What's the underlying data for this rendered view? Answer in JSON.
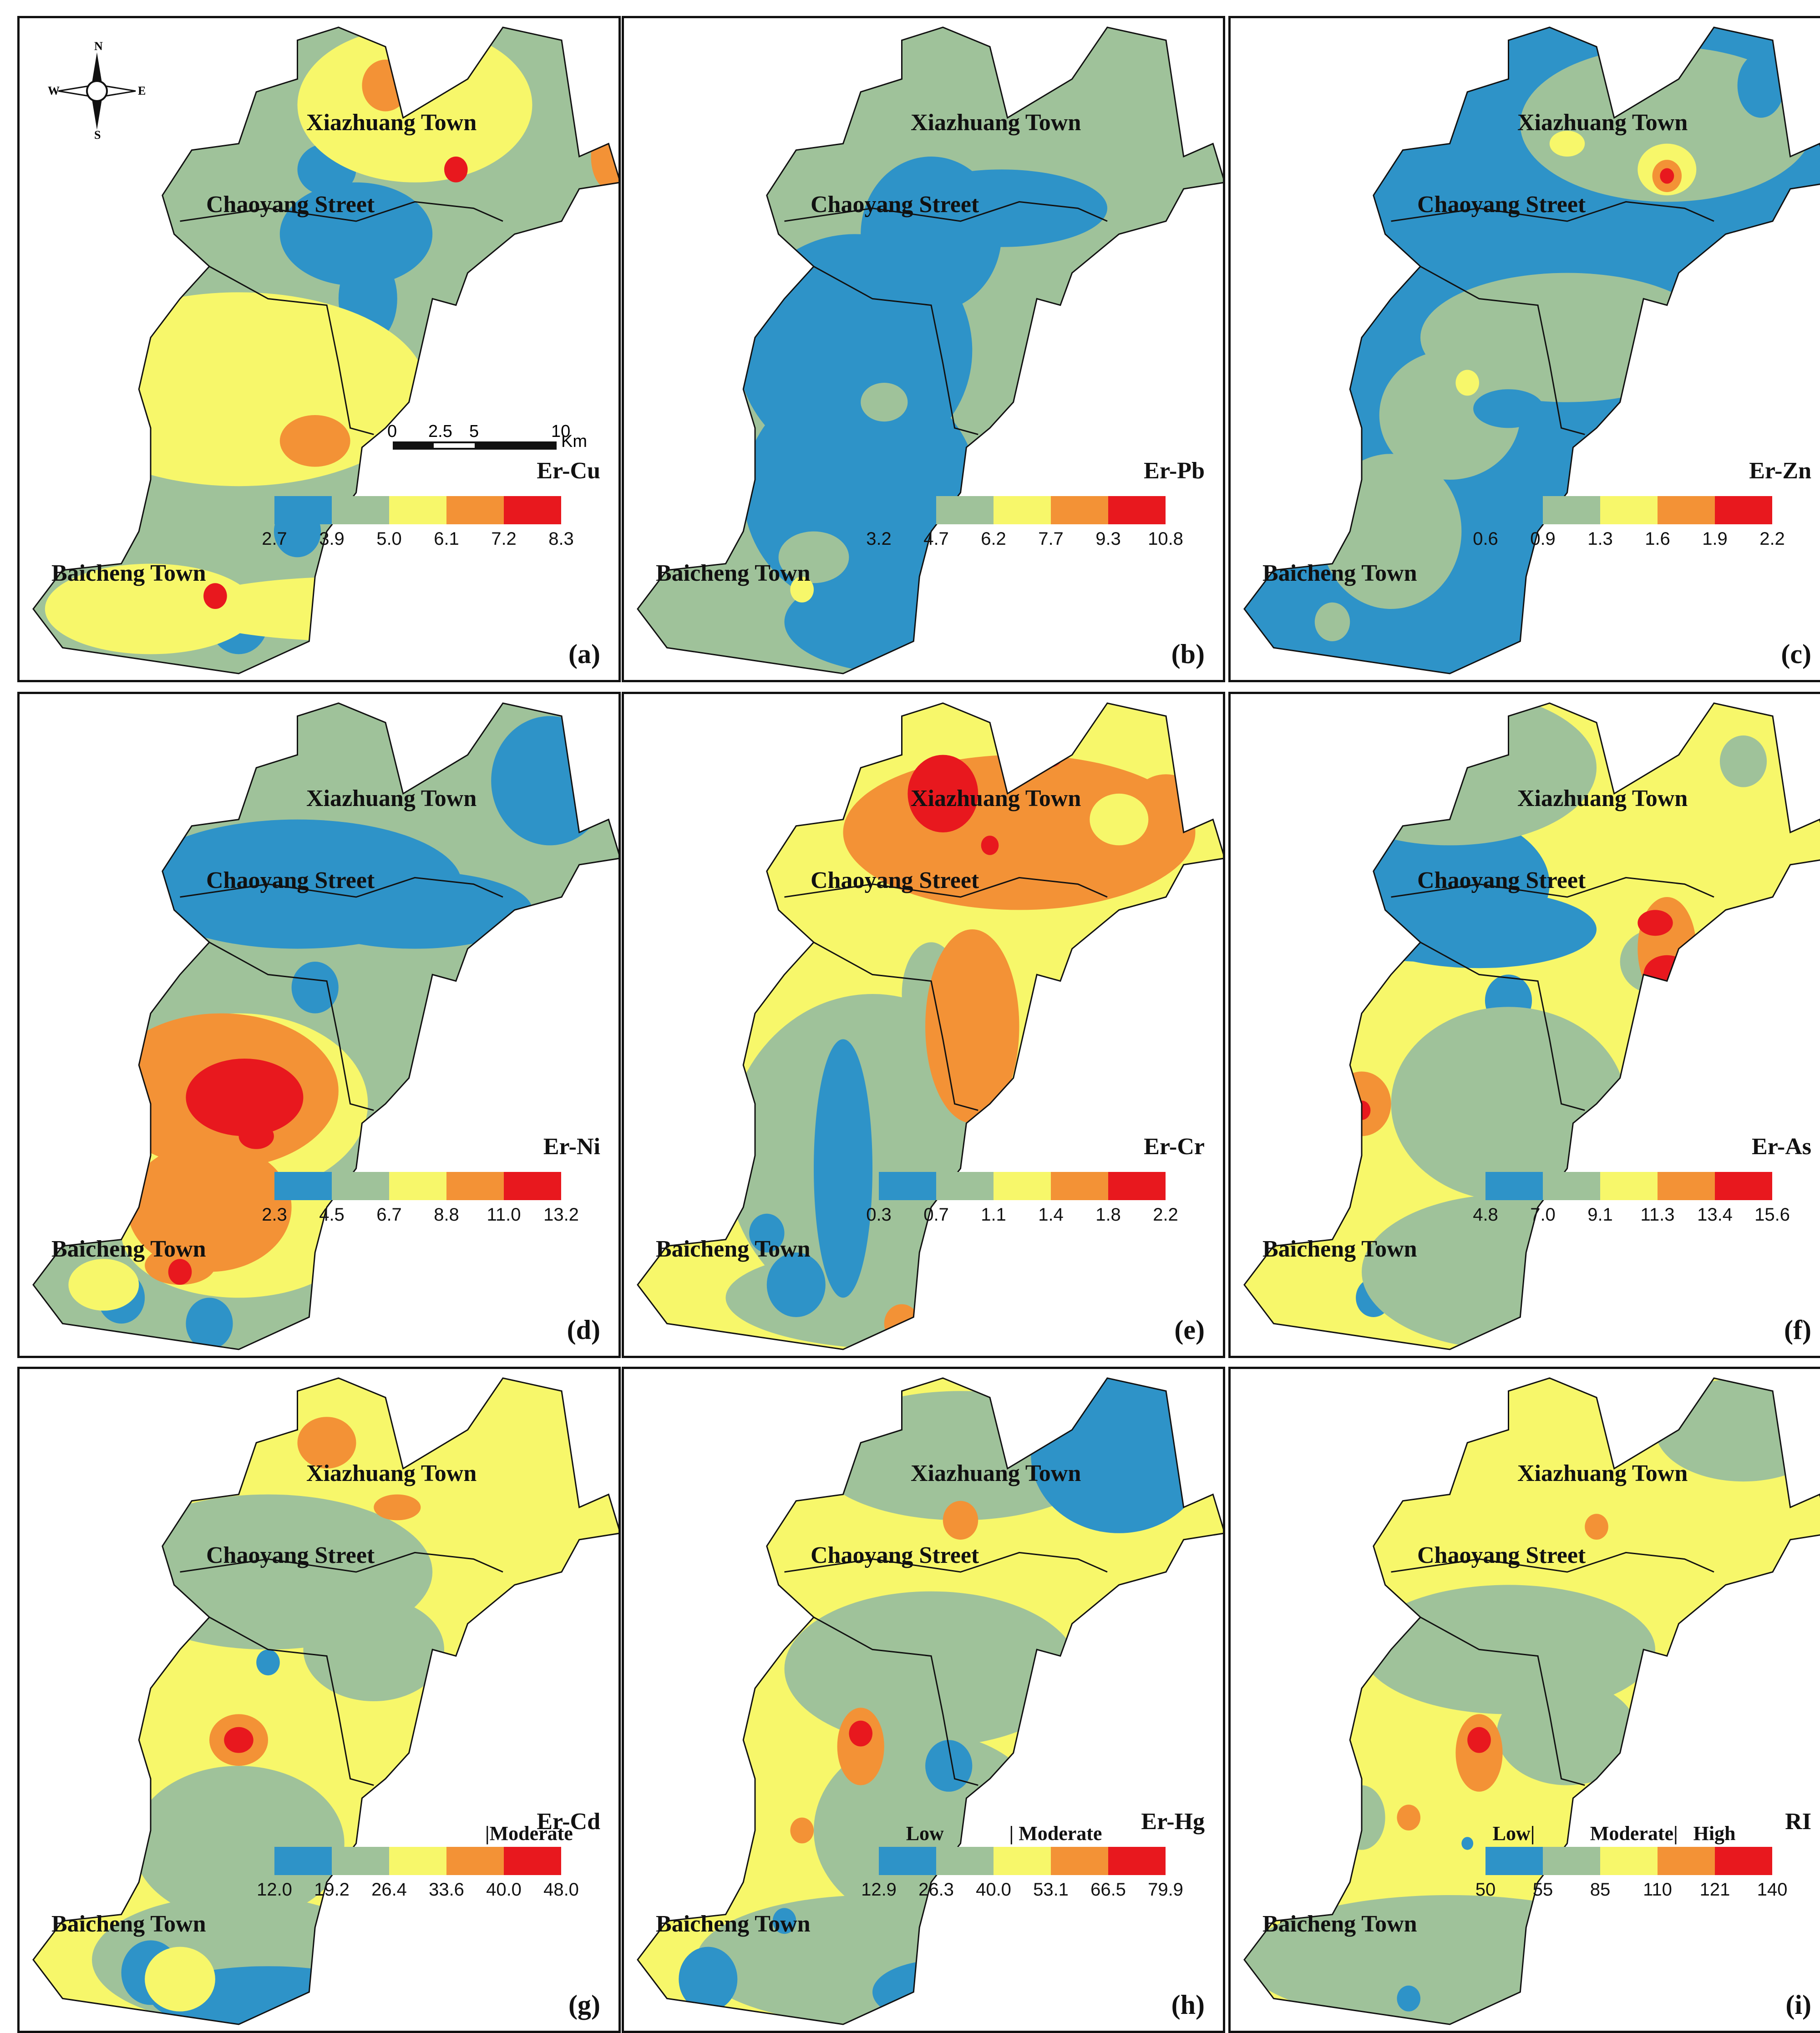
{
  "colors": {
    "c1": "#2e93c8",
    "c2": "#9fc29a",
    "c3": "#f7f76a",
    "c4": "#f39236",
    "c5": "#e8181e",
    "boundary": "#111111"
  },
  "place_names": {
    "xiazhuang": "Xiazhuang Town",
    "chaoyang": "Chaoyang Street",
    "baicheng": "Baicheng Town"
  },
  "compass": {
    "n": "N",
    "s": "S",
    "e": "E",
    "w": "W"
  },
  "scale": {
    "labels": [
      "0",
      "2.5",
      "5",
      "10"
    ],
    "unit": "Km"
  },
  "panels": [
    {
      "label": "(a)",
      "title": "Er-Cu",
      "ticks": [
        "2.7",
        "3.9",
        "5.0",
        "6.1",
        "7.2",
        "8.3"
      ],
      "base": "c2",
      "blobs": [
        [
          "c1",
          0.55,
          0.32,
          0.13,
          0.08
        ],
        [
          "c1",
          0.57,
          0.42,
          0.05,
          0.07
        ],
        [
          "c1",
          0.5,
          0.22,
          0.05,
          0.04
        ],
        [
          "c1",
          0.78,
          0.55,
          0.04,
          0.02
        ],
        [
          "c1",
          0.35,
          0.92,
          0.05,
          0.05
        ],
        [
          "c1",
          0.45,
          0.78,
          0.04,
          0.04
        ],
        [
          "c3",
          0.65,
          0.12,
          0.2,
          0.12
        ],
        [
          "c3",
          0.35,
          0.56,
          0.32,
          0.15
        ],
        [
          "c3",
          0.2,
          0.9,
          0.18,
          0.07
        ],
        [
          "c3",
          0.55,
          0.9,
          0.3,
          0.05
        ],
        [
          "c4",
          0.6,
          0.09,
          0.04,
          0.04
        ],
        [
          "c4",
          0.48,
          0.64,
          0.06,
          0.04
        ],
        [
          "c4",
          0.98,
          0.2,
          0.03,
          0.05
        ],
        [
          "c5",
          0.72,
          0.22,
          0.02,
          0.02
        ],
        [
          "c5",
          0.31,
          0.88,
          0.02,
          0.02
        ]
      ]
    },
    {
      "label": "(b)",
      "title": "Er-Pb",
      "ticks": [
        "3.2",
        "4.7",
        "6.2",
        "7.7",
        "9.3",
        "10.8"
      ],
      "base": "c2",
      "blobs": [
        [
          "c1",
          0.5,
          0.32,
          0.12,
          0.12
        ],
        [
          "c1",
          0.37,
          0.5,
          0.2,
          0.18
        ],
        [
          "c1",
          0.38,
          0.72,
          0.2,
          0.18
        ],
        [
          "c1",
          0.45,
          0.92,
          0.2,
          0.08
        ],
        [
          "c1",
          0.62,
          0.28,
          0.18,
          0.06
        ],
        [
          "c2",
          0.42,
          0.58,
          0.04,
          0.03
        ],
        [
          "c2",
          0.3,
          0.82,
          0.06,
          0.04
        ],
        [
          "c3",
          0.28,
          0.87,
          0.02,
          0.02
        ]
      ]
    },
    {
      "label": "(c)",
      "title": "Er-Zn",
      "ticks": [
        "0.6",
        "0.9",
        "1.3",
        "1.6",
        "1.9",
        "2.2"
      ],
      "base": "c1",
      "blobs": [
        [
          "c2",
          0.72,
          0.15,
          0.25,
          0.12
        ],
        [
          "c2",
          0.55,
          0.48,
          0.25,
          0.1
        ],
        [
          "c2",
          0.35,
          0.6,
          0.12,
          0.1
        ],
        [
          "c2",
          0.25,
          0.78,
          0.12,
          0.12
        ],
        [
          "c2",
          0.15,
          0.92,
          0.03,
          0.03
        ],
        [
          "c2",
          0.55,
          0.86,
          0.06,
          0.04
        ],
        [
          "c1",
          0.88,
          0.09,
          0.04,
          0.05
        ],
        [
          "c1",
          0.45,
          0.59,
          0.06,
          0.03
        ],
        [
          "c3",
          0.72,
          0.22,
          0.05,
          0.04
        ],
        [
          "c3",
          0.55,
          0.18,
          0.03,
          0.02
        ],
        [
          "c3",
          0.38,
          0.55,
          0.02,
          0.02
        ],
        [
          "c4",
          0.72,
          0.23,
          0.025,
          0.025
        ],
        [
          "c5",
          0.72,
          0.23,
          0.012,
          0.012
        ]
      ]
    },
    {
      "label": "(d)",
      "title": "Er-Ni",
      "ticks": [
        "2.3",
        "4.5",
        "6.7",
        "8.8",
        "11.0",
        "13.2"
      ],
      "base": "c2",
      "blobs": [
        [
          "c1",
          0.45,
          0.28,
          0.28,
          0.1
        ],
        [
          "c1",
          0.65,
          0.32,
          0.2,
          0.06
        ],
        [
          "c1",
          0.88,
          0.12,
          0.1,
          0.1
        ],
        [
          "c1",
          0.48,
          0.44,
          0.04,
          0.04
        ],
        [
          "c1",
          0.15,
          0.92,
          0.04,
          0.04
        ],
        [
          "c1",
          0.3,
          0.96,
          0.04,
          0.04
        ],
        [
          "c3",
          0.35,
          0.62,
          0.22,
          0.14
        ],
        [
          "c3",
          0.35,
          0.82,
          0.2,
          0.1
        ],
        [
          "c3",
          0.12,
          0.9,
          0.06,
          0.04
        ],
        [
          "c4",
          0.32,
          0.6,
          0.2,
          0.12
        ],
        [
          "c4",
          0.3,
          0.78,
          0.14,
          0.1
        ],
        [
          "c4",
          0.25,
          0.87,
          0.06,
          0.03
        ],
        [
          "c5",
          0.36,
          0.61,
          0.1,
          0.06
        ],
        [
          "c5",
          0.38,
          0.67,
          0.03,
          0.02
        ],
        [
          "c5",
          0.25,
          0.88,
          0.02,
          0.02
        ]
      ]
    },
    {
      "label": "(e)",
      "title": "Er-Cr",
      "ticks": [
        "0.3",
        "0.7",
        "1.1",
        "1.4",
        "1.8",
        "2.2"
      ],
      "base": "c3",
      "blobs": [
        [
          "c2",
          0.4,
          0.7,
          0.25,
          0.25
        ],
        [
          "c2",
          0.45,
          0.92,
          0.3,
          0.08
        ],
        [
          "c2",
          0.5,
          0.45,
          0.05,
          0.08
        ],
        [
          "c1",
          0.35,
          0.72,
          0.05,
          0.2
        ],
        [
          "c1",
          0.22,
          0.82,
          0.03,
          0.03
        ],
        [
          "c1",
          0.27,
          0.9,
          0.05,
          0.05
        ],
        [
          "c4",
          0.65,
          0.2,
          0.3,
          0.12
        ],
        [
          "c4",
          0.57,
          0.5,
          0.08,
          0.15
        ],
        [
          "c4",
          0.9,
          0.16,
          0.06,
          0.05
        ],
        [
          "c4",
          0.45,
          0.96,
          0.03,
          0.03
        ],
        [
          "c3",
          0.82,
          0.18,
          0.05,
          0.04
        ],
        [
          "c5",
          0.52,
          0.14,
          0.06,
          0.06
        ],
        [
          "c5",
          0.7,
          0.07,
          0.03,
          0.03
        ],
        [
          "c5",
          0.6,
          0.22,
          0.015,
          0.015
        ]
      ]
    },
    {
      "label": "(f)",
      "title": "Er-As",
      "ticks": [
        "4.8",
        "7.0",
        "9.1",
        "11.3",
        "13.4",
        "15.6"
      ],
      "base": "c3",
      "blobs": [
        [
          "c1",
          0.3,
          0.28,
          0.22,
          0.12
        ],
        [
          "c1",
          0.4,
          0.35,
          0.2,
          0.06
        ],
        [
          "c1",
          0.45,
          0.46,
          0.04,
          0.04
        ],
        [
          "c1",
          0.22,
          0.92,
          0.03,
          0.03
        ],
        [
          "c2",
          0.35,
          0.1,
          0.25,
          0.12
        ],
        [
          "c2",
          0.45,
          0.62,
          0.2,
          0.15
        ],
        [
          "c2",
          0.45,
          0.88,
          0.25,
          0.12
        ],
        [
          "c2",
          0.85,
          0.09,
          0.04,
          0.04
        ],
        [
          "c2",
          0.7,
          0.4,
          0.06,
          0.05
        ],
        [
          "c4",
          0.72,
          0.38,
          0.05,
          0.08
        ],
        [
          "c4",
          0.2,
          0.62,
          0.05,
          0.05
        ],
        [
          "c5",
          0.72,
          0.42,
          0.04,
          0.03
        ],
        [
          "c5",
          0.7,
          0.34,
          0.03,
          0.02
        ],
        [
          "c5",
          0.2,
          0.63,
          0.015,
          0.015
        ]
      ]
    },
    {
      "label": "(g)",
      "title": "Er-Cd",
      "ticks": [
        "12.0",
        "19.2",
        "26.4",
        "33.6",
        "40.0",
        "48.0"
      ],
      "classes": [
        [
          "|Moderate",
          0.83
        ]
      ],
      "base": "c3",
      "blobs": [
        [
          "c2",
          0.4,
          0.3,
          0.28,
          0.12
        ],
        [
          "c2",
          0.58,
          0.42,
          0.12,
          0.08
        ],
        [
          "c2",
          0.35,
          0.72,
          0.18,
          0.12
        ],
        [
          "c2",
          0.35,
          0.9,
          0.25,
          0.1
        ],
        [
          "c1",
          0.4,
          0.96,
          0.2,
          0.05
        ],
        [
          "c1",
          0.2,
          0.92,
          0.05,
          0.05
        ],
        [
          "c1",
          0.4,
          0.44,
          0.02,
          0.02
        ],
        [
          "c3",
          0.25,
          0.93,
          0.06,
          0.05
        ],
        [
          "c4",
          0.5,
          0.1,
          0.05,
          0.04
        ],
        [
          "c4",
          0.62,
          0.2,
          0.04,
          0.02
        ],
        [
          "c4",
          0.35,
          0.56,
          0.05,
          0.04
        ],
        [
          "c5",
          0.35,
          0.56,
          0.025,
          0.02
        ]
      ]
    },
    {
      "label": "(h)",
      "title": "Er-Hg",
      "ticks": [
        "12.9",
        "26.3",
        "40.0",
        "53.1",
        "66.5",
        "79.9"
      ],
      "classes": [
        [
          "Low",
          0.19
        ],
        [
          "| Moderate",
          0.55
        ]
      ],
      "base": "c3",
      "blobs": [
        [
          "c2",
          0.5,
          0.45,
          0.25,
          0.12
        ],
        [
          "c2",
          0.5,
          0.7,
          0.2,
          0.15
        ],
        [
          "c2",
          0.4,
          0.9,
          0.3,
          0.1
        ],
        [
          "c2",
          0.55,
          0.12,
          0.25,
          0.1
        ],
        [
          "c1",
          0.82,
          0.12,
          0.15,
          0.12
        ],
        [
          "c1",
          0.52,
          0.95,
          0.12,
          0.05
        ],
        [
          "c1",
          0.12,
          0.93,
          0.05,
          0.05
        ],
        [
          "c1",
          0.53,
          0.6,
          0.04,
          0.04
        ],
        [
          "c1",
          0.25,
          0.84,
          0.02,
          0.02
        ],
        [
          "c4",
          0.38,
          0.57,
          0.04,
          0.06
        ],
        [
          "c4",
          0.55,
          0.22,
          0.03,
          0.03
        ],
        [
          "c4",
          0.28,
          0.7,
          0.02,
          0.02
        ],
        [
          "c5",
          0.38,
          0.55,
          0.02,
          0.02
        ]
      ]
    },
    {
      "label": "(i)",
      "title": "RI",
      "ticks": [
        "50",
        "55",
        "85",
        "110",
        "121",
        "140"
      ],
      "classes": [
        [
          "Low|",
          0.12
        ],
        [
          "Moderate|",
          0.46
        ],
        [
          "High",
          0.82
        ]
      ],
      "base": "c3",
      "blobs": [
        [
          "c2",
          0.45,
          0.42,
          0.25,
          0.1
        ],
        [
          "c2",
          0.55,
          0.55,
          0.12,
          0.08
        ],
        [
          "c2",
          0.35,
          0.9,
          0.35,
          0.1
        ],
        [
          "c2",
          0.2,
          0.68,
          0.04,
          0.05
        ],
        [
          "c2",
          0.85,
          0.08,
          0.15,
          0.08
        ],
        [
          "c4",
          0.4,
          0.58,
          0.04,
          0.06
        ],
        [
          "c4",
          0.6,
          0.23,
          0.02,
          0.02
        ],
        [
          "c4",
          0.28,
          0.68,
          0.02,
          0.02
        ],
        [
          "c5",
          0.4,
          0.56,
          0.02,
          0.02
        ],
        [
          "c1",
          0.28,
          0.96,
          0.02,
          0.02
        ],
        [
          "c1",
          0.38,
          0.72,
          0.01,
          0.01
        ]
      ]
    }
  ]
}
